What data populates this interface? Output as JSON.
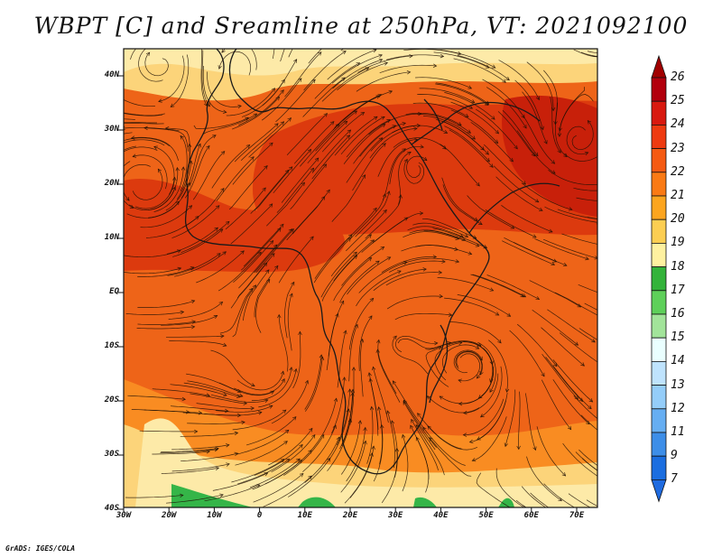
{
  "title": "WBPT [C] and Sreamline at 250hPa, VT: 2021092100",
  "credit": "GrADS: IGES/COLA",
  "lat_labels": [
    "40N",
    "30N",
    "20N",
    "10N",
    "EQ",
    "10S",
    "20S",
    "30S",
    "40S"
  ],
  "lon_labels": [
    "30W",
    "20W",
    "10W",
    "0",
    "10E",
    "20E",
    "30E",
    "40E",
    "50E",
    "60E",
    "70E"
  ],
  "colorbar": {
    "labels": [
      "26",
      "25",
      "24",
      "23",
      "22",
      "21",
      "20",
      "19",
      "18",
      "17",
      "16",
      "15",
      "14",
      "13",
      "12",
      "11",
      "9",
      "7"
    ],
    "colors": [
      "#b2000c",
      "#d8190f",
      "#ee3a10",
      "#f55a12",
      "#fa7a14",
      "#fca51f",
      "#fcce52",
      "#fef1a0",
      "#33b33a",
      "#5ed05a",
      "#a2e49a",
      "#eaffff",
      "#bfe3fd",
      "#94cdf9",
      "#66aef2",
      "#3d8ee8",
      "#1b6ee0"
    ],
    "upper_arrow_color": "#a10000",
    "lower_arrow_color": "#1f6be0"
  },
  "field_colors": {
    "main": "#ee6418",
    "warm": "#dc3a0e",
    "hot": "#c8200a",
    "mid": "#f98c22",
    "pale": "#fcd47a",
    "cream": "#fdeaa8",
    "green": "#35b548"
  },
  "map_icons": [
    "streamline-arrow-icon",
    "coastline-icon"
  ]
}
